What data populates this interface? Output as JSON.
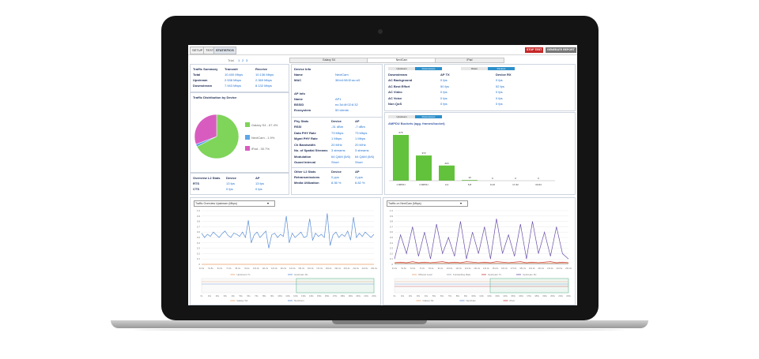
{
  "tabs": {
    "setup": "SETUP",
    "test": "TEST",
    "statistics": "STATISTICS"
  },
  "buttons": {
    "stop": "STOP TEST",
    "generate": "GENERATE REPORT"
  },
  "trial": {
    "label": "Trial",
    "pages": [
      "1",
      "2",
      "3"
    ]
  },
  "device_tabs": [
    "Galaxy S4",
    "NextCam",
    "iPad"
  ],
  "traffic_summary": {
    "title": "Traffic Summary",
    "col1": "Transmit",
    "col2": "Receive",
    "rows": [
      {
        "label": "Total",
        "tx": "10.400 Mbps",
        "rx": "10.136 Mbps"
      },
      {
        "label": "Upstream",
        "tx": "2.538 Mbps",
        "rx": "2.369 Mbps"
      },
      {
        "label": "Downstream",
        "tx": "7.943 Mbps",
        "rx": "8.132 Mbps"
      }
    ]
  },
  "distribution": {
    "title": "Traffic Distribution by Device",
    "slices": [
      {
        "label": "Galaxy S4 - 67.4%",
        "value": 67.4,
        "color": "#7fd45a"
      },
      {
        "label": "NextCam - 1.9%",
        "value": 1.9,
        "color": "#5ea7e8"
      },
      {
        "label": "iPad - 30.7%",
        "value": 30.7,
        "color": "#d85cc0"
      }
    ]
  },
  "l2_stats": {
    "title": "Overview L2 Stats",
    "col1": "Device",
    "col2": "AP",
    "rows": [
      {
        "label": "RTS",
        "a": "13 fps",
        "b": "13 fps"
      },
      {
        "label": "CTS",
        "a": "0 fps",
        "b": "0 fps"
      }
    ]
  },
  "device_info": {
    "title": "Device Info",
    "rows": [
      {
        "label": "Name",
        "value": "NextCam"
      },
      {
        "label": "MAC",
        "value": "38:b4:98:f2:ac:a3"
      }
    ]
  },
  "ap_info": {
    "title": "AP Info",
    "rows": [
      {
        "label": "Name",
        "value": "AP1"
      },
      {
        "label": "BSSID",
        "value": "ec:3d:4f:02:6:32"
      },
      {
        "label": "Ecosystem",
        "value": "50 clients"
      }
    ]
  },
  "phy_stats": {
    "title": "Phy Stats",
    "col1": "Device",
    "col2": "AP",
    "rows": [
      {
        "label": "RSSI",
        "a": "-31 dBm",
        "b": "-7 dBm"
      },
      {
        "label": "Data PHY Rate",
        "a": "73 Mbps",
        "b": "73 Mbps"
      },
      {
        "label": "Mgmt PHY Rate",
        "a": "1 Mbps",
        "b": "1 Mbps"
      },
      {
        "label": "Ch Bandwidth",
        "a": "20 MHz",
        "b": "20 MHz"
      },
      {
        "label": "No. of Spatial Streams",
        "a": "3 streams",
        "b": "3 streams"
      },
      {
        "label": "Modulation",
        "a": "64 QAM (5/6)",
        "b": "64 QAM (5/6)"
      },
      {
        "label": "Guard Interval",
        "a": "Short",
        "b": "Short"
      }
    ]
  },
  "other_l2": {
    "title": "Other L2 Stats",
    "col1": "Device",
    "col2": "AP",
    "rows": [
      {
        "label": "Retransmissions",
        "a": "0 pps",
        "b": "4 pps"
      },
      {
        "label": "Media Utilization",
        "a": "8.36 %",
        "b": "6.82 %"
      }
    ]
  },
  "qos": {
    "subtabs": [
      "Upstream",
      "Downstream",
      "Rates",
      "Packets"
    ],
    "title": "Downstream",
    "col1": "AP TX",
    "col2": "Device RX",
    "rows": [
      {
        "label": "AC Background",
        "a": "0 fps",
        "b": "0 fps"
      },
      {
        "label": "AC Best Effort",
        "a": "50 fps",
        "b": "52 fps"
      },
      {
        "label": "AC Video",
        "a": "0 fps",
        "b": "0 fps"
      },
      {
        "label": "AC Voice",
        "a": "0 fps",
        "b": "0 fps"
      },
      {
        "label": "Non QoS",
        "a": "0 fps",
        "b": "0 fps"
      }
    ]
  },
  "ampdu": {
    "subtabs": [
      "Upstream",
      "Downstream"
    ],
    "title": "AMPDU Buckets (agg. frames/bucket)",
    "chart_data": {
      "type": "bar",
      "categories": [
        "1 MPDU",
        "2 MPDU",
        "3-4",
        "5-8",
        "9-16",
        "17-32",
        "33-64"
      ],
      "values": [
        676,
        372,
        224,
        10,
        0,
        0,
        0
      ],
      "labels": [
        "676",
        "372",
        "224",
        "10",
        "0",
        "0",
        "0"
      ]
    }
  },
  "left_chart": {
    "select": "Traffic Overview Upstream (Mbps)",
    "chart_data": {
      "type": "line",
      "yticks": [
        "0",
        "0.1",
        "0.2",
        "0.3",
        "0.4",
        "0.5",
        "0.6",
        "0.7",
        "0.8",
        "0.9",
        "1.0"
      ],
      "ylim": [
        0,
        1
      ],
      "xticks": [
        "41.6s",
        "51.8s",
        "61.0s",
        "71.0s",
        "81.0s",
        "91.0s",
        "101.0s",
        "111.0s",
        "121.0s",
        "131.0s",
        "141.0s",
        "151.0s",
        "161.0s",
        "171.0s",
        "181.0s",
        "191.0s",
        "201.0s",
        "211.0s",
        "221.0s",
        "231.0s"
      ],
      "series": [
        {
          "name": "Upstream Tx",
          "color": "#e8a06a",
          "values": [
            0,
            0,
            0,
            0,
            0,
            0,
            0,
            0,
            0,
            0,
            0,
            0,
            0,
            0,
            0,
            0,
            0,
            0,
            0,
            0,
            0,
            0,
            0,
            0,
            0,
            0,
            0,
            0,
            0,
            0,
            0,
            0,
            0,
            0,
            0,
            0,
            0,
            0,
            0,
            0,
            0,
            0,
            0,
            0,
            0,
            0,
            0,
            0,
            0,
            0,
            0,
            0,
            0,
            0,
            0,
            0,
            0,
            0,
            0,
            0
          ]
        },
        {
          "name": "Upstream Rx",
          "color": "#5b8ed6",
          "values": [
            0.58,
            0.5,
            0.56,
            0.52,
            0.6,
            0.55,
            0.5,
            0.57,
            0.62,
            0.54,
            0.5,
            0.58,
            0.56,
            0.52,
            0.6,
            0.5,
            0.82,
            0.4,
            0.55,
            0.6,
            0.5,
            0.56,
            0.62,
            0.3,
            0.55,
            0.58,
            0.5,
            0.56,
            0.52,
            0.9,
            0.4,
            0.58,
            0.5,
            0.55,
            0.6,
            0.5,
            0.52,
            0.85,
            0.45,
            0.58,
            0.52,
            0.56,
            0.5,
            0.95,
            0.35,
            0.55,
            0.6,
            0.5,
            0.56,
            0.52,
            0.62,
            0.45,
            0.88,
            0.5,
            0.58,
            0.52,
            0.6,
            0.55,
            0.5,
            0.56
          ]
        }
      ]
    },
    "overview": {
      "xticks": [
        "0s",
        "10s",
        "20s",
        "30s",
        "40s",
        "50s",
        "60s",
        "70s",
        "80s",
        "90s",
        "100s",
        "110s",
        "120s",
        "130s",
        "140s",
        "150s",
        "160s",
        "170s",
        "180s",
        "190s",
        "200s",
        "210s",
        "220s"
      ],
      "legend": [
        "Galaxy S4",
        "NextCam"
      ]
    }
  },
  "right_chart": {
    "select": "Traffic on NextCam (Mbps)",
    "chart_data": {
      "type": "line",
      "yticks": [
        "0",
        "0.1",
        "0.2",
        "0.3",
        "0.4",
        "0.5",
        "0.6",
        "0.7",
        "0.8",
        "0.9",
        "1.0"
      ],
      "ylim": [
        0,
        1
      ],
      "xticks": [
        "41.6s",
        "51.8s",
        "61.0s",
        "71.0s",
        "81.0s",
        "91.0s",
        "101.0s",
        "111.0s",
        "121.0s",
        "131.0s",
        "141.0s",
        "151.0s",
        "161.0s",
        "171.0s",
        "181.0s",
        "191.0s",
        "201.0s",
        "211.0s",
        "221.0s",
        "231.0s"
      ],
      "series": [
        {
          "name": "Offered Load",
          "color": "#e8a06a",
          "values": [
            0.02,
            0.02,
            0.02,
            0.02,
            0.02,
            0.02,
            0.02,
            0.02,
            0.02,
            0.02,
            0.02,
            0.02,
            0.02,
            0.02,
            0.02,
            0.02,
            0.02,
            0.02,
            0.02,
            0.02,
            0.02,
            0.02,
            0.02,
            0.02,
            0.02,
            0.02,
            0.02,
            0.02,
            0.02,
            0.02
          ]
        },
        {
          "name": "Forwarding Rate",
          "color": "#9aa0a8",
          "values": [
            0.01,
            0.01,
            0.01,
            0.01,
            0.01,
            0.01,
            0.01,
            0.01,
            0.01,
            0.01,
            0.01,
            0.01,
            0.01,
            0.01,
            0.01,
            0.01,
            0.01,
            0.01,
            0.01,
            0.01,
            0.01,
            0.01,
            0.01,
            0.01,
            0.01,
            0.01,
            0.01,
            0.01,
            0.01,
            0.01
          ]
        },
        {
          "name": "Upstream Tx",
          "color": "#c83c3c",
          "values": [
            0.03,
            0.04,
            0.03,
            0.05,
            0.03,
            0.04,
            0.03,
            0.04,
            0.05,
            0.03,
            0.04,
            0.03,
            0.05,
            0.04,
            0.03,
            0.04,
            0.03,
            0.05,
            0.04,
            0.03,
            0.04,
            0.05,
            0.03,
            0.04,
            0.03,
            0.04,
            0.05,
            0.03,
            0.04,
            0.03
          ]
        },
        {
          "name": "Upstream Rx",
          "color": "#6a4ea8",
          "values": [
            0.1,
            0.55,
            0.2,
            0.7,
            0.15,
            0.6,
            0.1,
            0.75,
            0.2,
            0.5,
            0.15,
            0.8,
            0.1,
            0.6,
            0.2,
            0.7,
            0.1,
            0.85,
            0.2,
            0.55,
            0.15,
            0.75,
            0.1,
            0.8,
            0.2,
            0.6,
            0.15,
            0.7,
            0.2,
            0.1
          ]
        }
      ]
    },
    "overview": {
      "xticks": [
        "0s",
        "10s",
        "20s",
        "30s",
        "40s",
        "50s",
        "60s",
        "70s",
        "80s",
        "90s",
        "100s",
        "110s",
        "120s",
        "130s",
        "140s",
        "150s",
        "160s",
        "170s",
        "180s",
        "190s",
        "200s",
        "210s",
        "220s"
      ],
      "legend": [
        "Galaxy S4",
        "NextCam",
        "iPad"
      ]
    }
  }
}
